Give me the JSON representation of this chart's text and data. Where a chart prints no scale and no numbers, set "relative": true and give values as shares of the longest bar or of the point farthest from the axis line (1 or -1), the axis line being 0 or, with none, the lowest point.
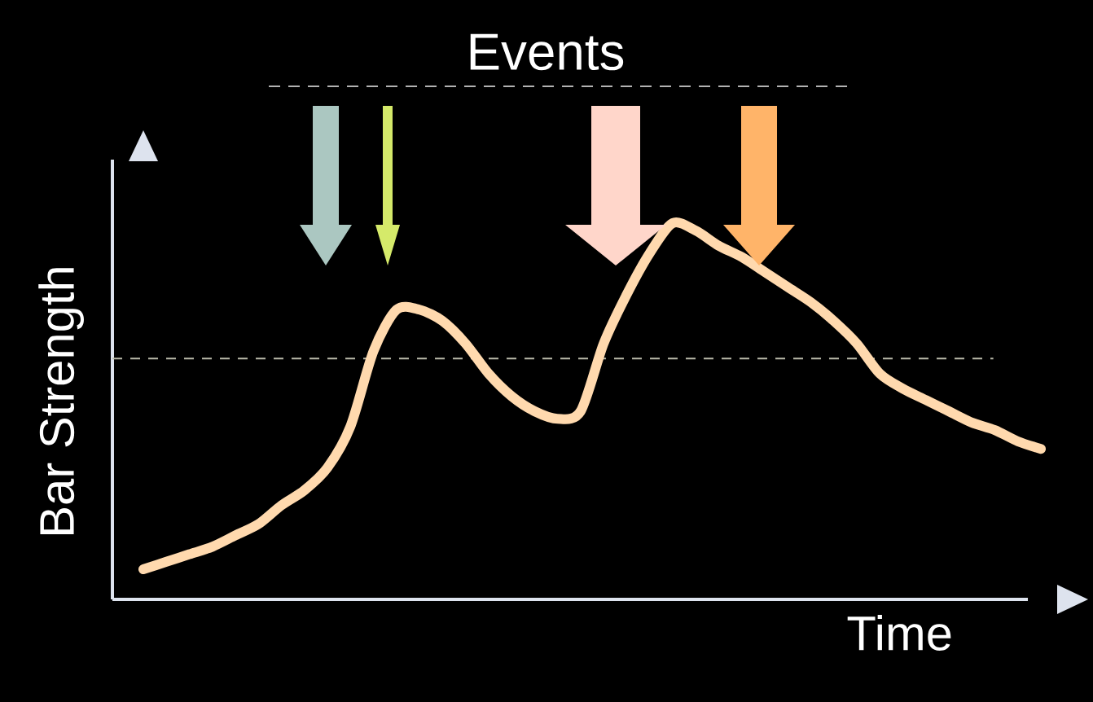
{
  "chart_data": {
    "type": "line",
    "relative": true,
    "annotations": [
      "Events"
    ],
    "xlabel": "Time",
    "ylabel": "Bar Strength",
    "categories": [
      null,
      null,
      null,
      null,
      null,
      null,
      null,
      null,
      null,
      null,
      null,
      null,
      null,
      null,
      null,
      null,
      null,
      null,
      null,
      null,
      null,
      null,
      null,
      null,
      null,
      null,
      null,
      null,
      null,
      null,
      null,
      null,
      null,
      null,
      null,
      null,
      null,
      null,
      null,
      null
    ],
    "series": [
      {
        "color": "#ffd9ae",
        "values": [
          0.08,
          0.1,
          0.12,
          0.14,
          0.17,
          0.2,
          0.25,
          0.29,
          0.35,
          0.46,
          0.66,
          0.77,
          0.77,
          0.74,
          0.68,
          0.6,
          0.54,
          0.5,
          0.48,
          0.5,
          0.68,
          0.81,
          0.92,
          1,
          0.98,
          0.94,
          0.91,
          0.87,
          0.83,
          0.79,
          0.74,
          0.68,
          0.6,
          0.56,
          0.53,
          0.5,
          0.47,
          0.45,
          0.42,
          0.4
        ]
      }
    ],
    "ref_lines": [
      {
        "axis": "y",
        "value": 0.64,
        "color": "#bbbbaa",
        "line_style": "dashed"
      }
    ]
  }
}
